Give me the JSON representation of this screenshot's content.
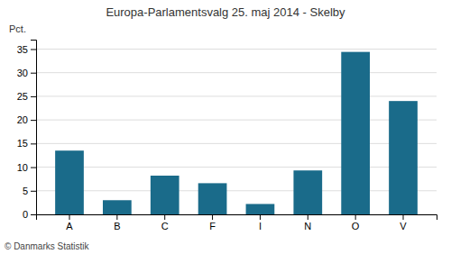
{
  "chart_data": {
    "type": "bar",
    "title": "Europa-Parlamentsvalg 25. maj 2014 - Skelby",
    "categories": [
      "A",
      "B",
      "C",
      "F",
      "I",
      "N",
      "O",
      "V"
    ],
    "values": [
      13.5,
      3.0,
      8.2,
      6.6,
      2.2,
      9.3,
      34.4,
      24.0
    ],
    "color": "#1a6b8a",
    "ylabel": "Pct.",
    "ylim": [
      0,
      37
    ],
    "yticks": [
      0,
      5,
      10,
      15,
      20,
      25,
      30,
      35
    ],
    "grid": true,
    "annotations": [
      "© Danmarks Statistik"
    ]
  }
}
